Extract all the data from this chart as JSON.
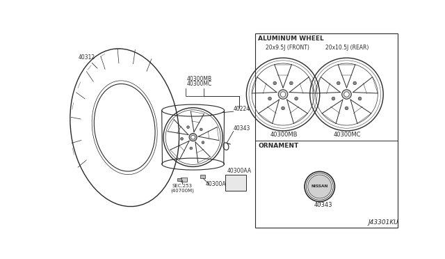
{
  "bg_color": "#ffffff",
  "line_color": "#2a2a2a",
  "title_diagram": "J43301KU",
  "section1_title": "ALUMINUM WHEEL",
  "section2_title": "ORNAMENT",
  "front_wheel_label": "20x9.5J (FRONT)",
  "rear_wheel_label": "20x10.5J (REAR)",
  "front_part": "40300MB",
  "rear_part": "40300MC",
  "ornament_part": "40343",
  "label_40312": "40312",
  "label_40300MB": "40300MB",
  "label_40300MC": "40300MC",
  "label_40224": "40224",
  "label_40343": "40343",
  "label_40300A": "40300A",
  "label_SEC253": "SEC.253",
  "label_40700M": "(40700M)",
  "label_40300AA": "40300AA"
}
